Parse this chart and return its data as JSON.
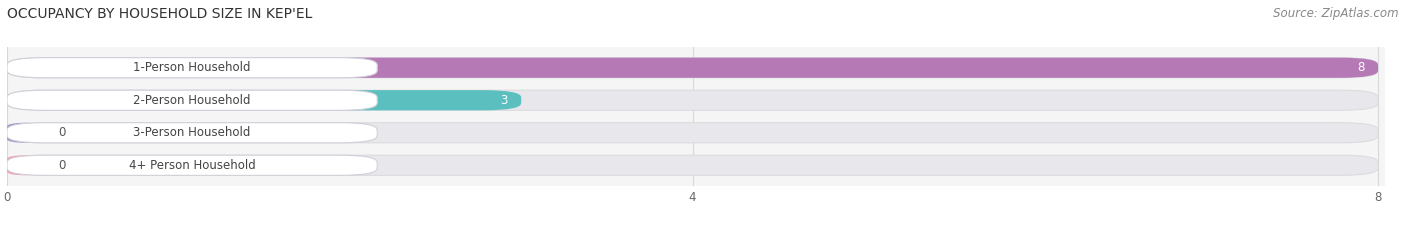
{
  "title": "OCCUPANCY BY HOUSEHOLD SIZE IN KEP'EL",
  "source": "Source: ZipAtlas.com",
  "categories": [
    "1-Person Household",
    "2-Person Household",
    "3-Person Household",
    "4+ Person Household"
  ],
  "values": [
    8,
    3,
    0,
    0
  ],
  "bar_colors": [
    "#b57ab5",
    "#5bbfbf",
    "#9999cc",
    "#f0a0b8"
  ],
  "xlim_max": 8,
  "xticks": [
    0,
    4,
    8
  ],
  "label_text_color": "#444444",
  "value_in_bar_color": "#ffffff",
  "value_out_bar_color": "#555555",
  "title_fontsize": 10,
  "source_fontsize": 8.5,
  "label_fontsize": 8.5,
  "value_fontsize": 8.5,
  "fig_bg_color": "#ffffff",
  "plot_bg_color": "#f5f5f5",
  "bar_bg_color": "#e8e8ec",
  "label_bg_color": "#ffffff",
  "grid_color": "#d8d8d8"
}
